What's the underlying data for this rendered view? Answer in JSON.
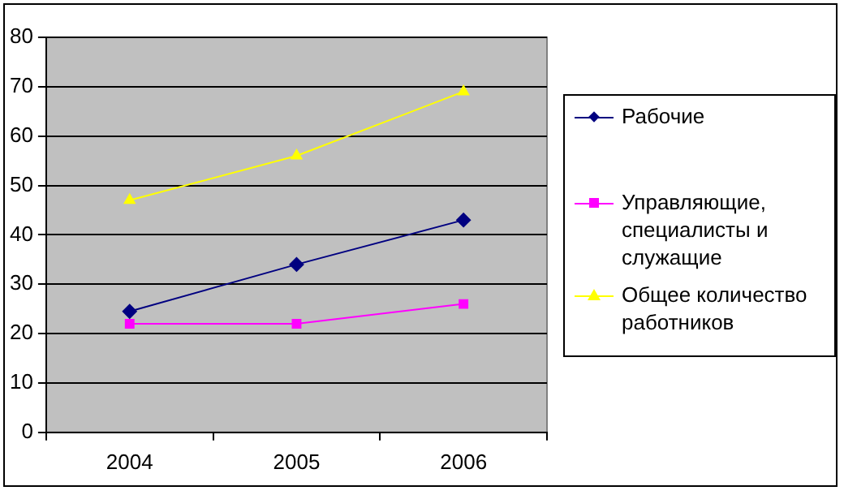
{
  "chart_data": {
    "type": "line",
    "categories": [
      "2004",
      "2005",
      "2006"
    ],
    "series": [
      {
        "name": "Рабочие",
        "color": "#000080",
        "marker": "diamond",
        "values": [
          24.5,
          34,
          43
        ]
      },
      {
        "name": "Управляющие, специалисты и служащие",
        "color": "#ff00ff",
        "marker": "square",
        "values": [
          22,
          22,
          26
        ]
      },
      {
        "name": "Общее количество работников",
        "color": "#ffff00",
        "marker": "triangle",
        "values": [
          47,
          56,
          69
        ]
      }
    ],
    "ylim": [
      0,
      80
    ],
    "yticks": [
      0,
      10,
      20,
      30,
      40,
      50,
      60,
      70,
      80
    ],
    "grid": "y",
    "legend": "right",
    "line_style": "solid"
  }
}
